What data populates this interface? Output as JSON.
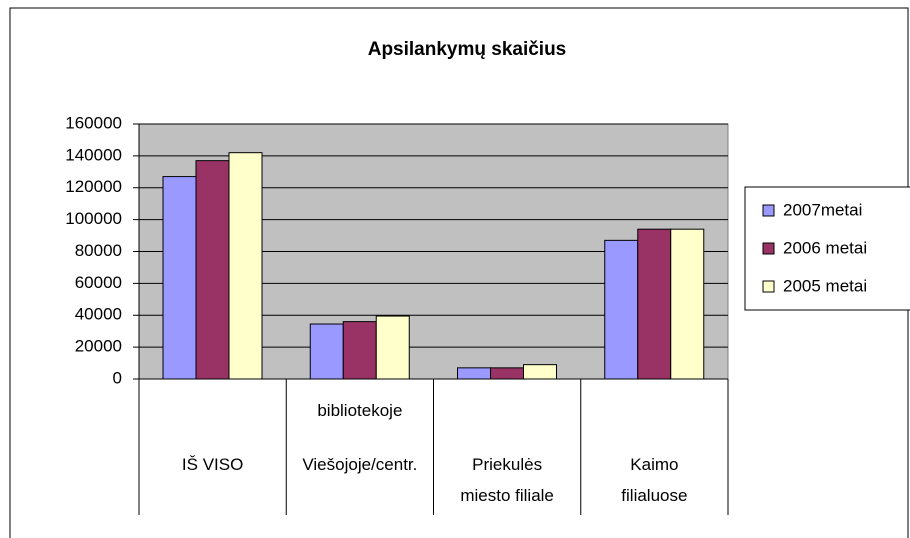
{
  "chart_data": {
    "type": "bar",
    "title": "Apsilankymų skaičius",
    "categories": [
      "IŠ VISO",
      "Viešojoje/centr. bibliotekoje",
      "Priekulės miesto filiale",
      "Kaimo filialuose"
    ],
    "series": [
      {
        "name": "2007metai",
        "color": "#9999ff",
        "values": [
          127000,
          34500,
          7000,
          87000
        ]
      },
      {
        "name": "2006 metai",
        "color": "#993366",
        "values": [
          137000,
          36000,
          7000,
          94000
        ]
      },
      {
        "name": "2005 metai",
        "color": "#ffffcc",
        "values": [
          142000,
          39500,
          9000,
          94000
        ]
      }
    ],
    "ylim": [
      0,
      160000
    ],
    "yticks": [
      0,
      20000,
      40000,
      60000,
      80000,
      100000,
      120000,
      140000,
      160000
    ],
    "grid": true,
    "legend": "right",
    "plot_background": "#c0c0c0"
  }
}
